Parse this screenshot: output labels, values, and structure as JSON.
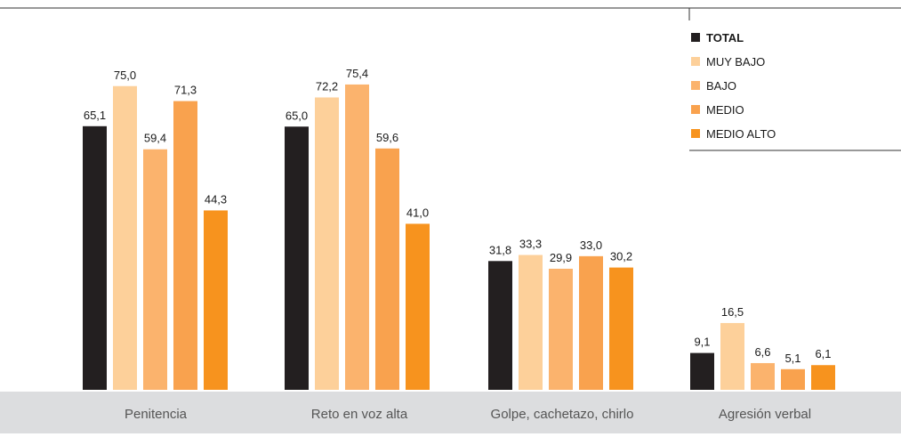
{
  "chart_data": {
    "type": "bar",
    "categories": [
      "Penitencia",
      "Reto en voz alta",
      "Golpe, cachetazo, chirlo",
      "Agresión verbal"
    ],
    "series": [
      {
        "name": "TOTAL",
        "color": "#231f20",
        "values": [
          65.1,
          65.0,
          31.8,
          9.1
        ],
        "labels": [
          "65,1",
          "65,0",
          "31,8",
          "9,1"
        ]
      },
      {
        "name": "MUY BAJO",
        "color": "#fdd09a",
        "values": [
          75.0,
          72.2,
          33.3,
          16.5
        ],
        "labels": [
          "75,0",
          "72,2",
          "33,3",
          "16,5"
        ]
      },
      {
        "name": "BAJO",
        "color": "#fbb36d",
        "values": [
          59.4,
          75.4,
          29.9,
          6.6
        ],
        "labels": [
          "59,4",
          "75,4",
          "29,9",
          "6,6"
        ]
      },
      {
        "name": "MEDIO",
        "color": "#f9a24e",
        "values": [
          71.3,
          59.6,
          33.0,
          5.1
        ],
        "labels": [
          "71,3",
          "59,6",
          "33,0",
          "5,1"
        ]
      },
      {
        "name": "MEDIO ALTO",
        "color": "#f7931e",
        "values": [
          44.3,
          41.0,
          30.2,
          6.1
        ],
        "labels": [
          "44,3",
          "41,0",
          "30,2",
          "6,1"
        ]
      }
    ],
    "ylim": [
      0,
      100
    ],
    "grid": false,
    "legend_position": "top-right",
    "title": "",
    "xlabel": "",
    "ylabel": ""
  }
}
